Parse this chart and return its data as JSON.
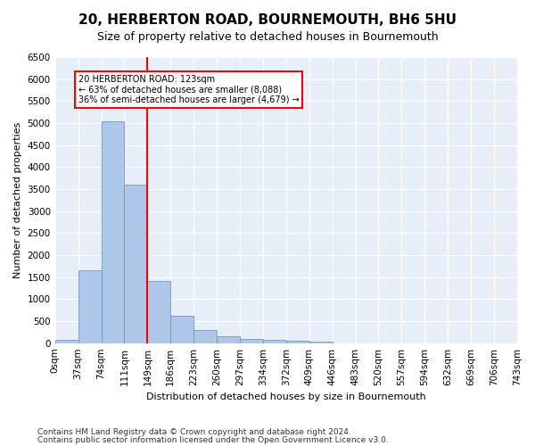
{
  "title": "20, HERBERTON ROAD, BOURNEMOUTH, BH6 5HU",
  "subtitle": "Size of property relative to detached houses in Bournemouth",
  "xlabel": "Distribution of detached houses by size in Bournemouth",
  "ylabel": "Number of detached properties",
  "footer_line1": "Contains HM Land Registry data © Crown copyright and database right 2024.",
  "footer_line2": "Contains public sector information licensed under the Open Government Licence v3.0.",
  "bin_labels": [
    "0sqm",
    "37sqm",
    "74sqm",
    "111sqm",
    "149sqm",
    "186sqm",
    "223sqm",
    "260sqm",
    "297sqm",
    "334sqm",
    "372sqm",
    "409sqm",
    "446sqm",
    "483sqm",
    "520sqm",
    "557sqm",
    "594sqm",
    "632sqm",
    "669sqm",
    "706sqm",
    "743sqm"
  ],
  "bar_values": [
    75,
    1650,
    5050,
    3600,
    1420,
    620,
    290,
    155,
    105,
    75,
    50,
    30,
    0,
    0,
    0,
    0,
    0,
    0,
    0,
    0
  ],
  "bar_color": "#aec6e8",
  "bar_edge_color": "#5a8fc2",
  "vline_x": 3.5,
  "vline_color": "red",
  "annotation_text": "20 HERBERTON ROAD: 123sqm\n← 63% of detached houses are smaller (8,088)\n36% of semi-detached houses are larger (4,679) →",
  "annotation_box_color": "white",
  "annotation_box_edge_color": "red",
  "ylim": [
    0,
    6500
  ],
  "yticks": [
    0,
    500,
    1000,
    1500,
    2000,
    2500,
    3000,
    3500,
    4000,
    4500,
    5000,
    5500,
    6000,
    6500
  ],
  "plot_bg_color": "#e8eef8",
  "title_fontsize": 11,
  "subtitle_fontsize": 9,
  "axis_label_fontsize": 8,
  "tick_fontsize": 7.5,
  "footer_fontsize": 6.5
}
